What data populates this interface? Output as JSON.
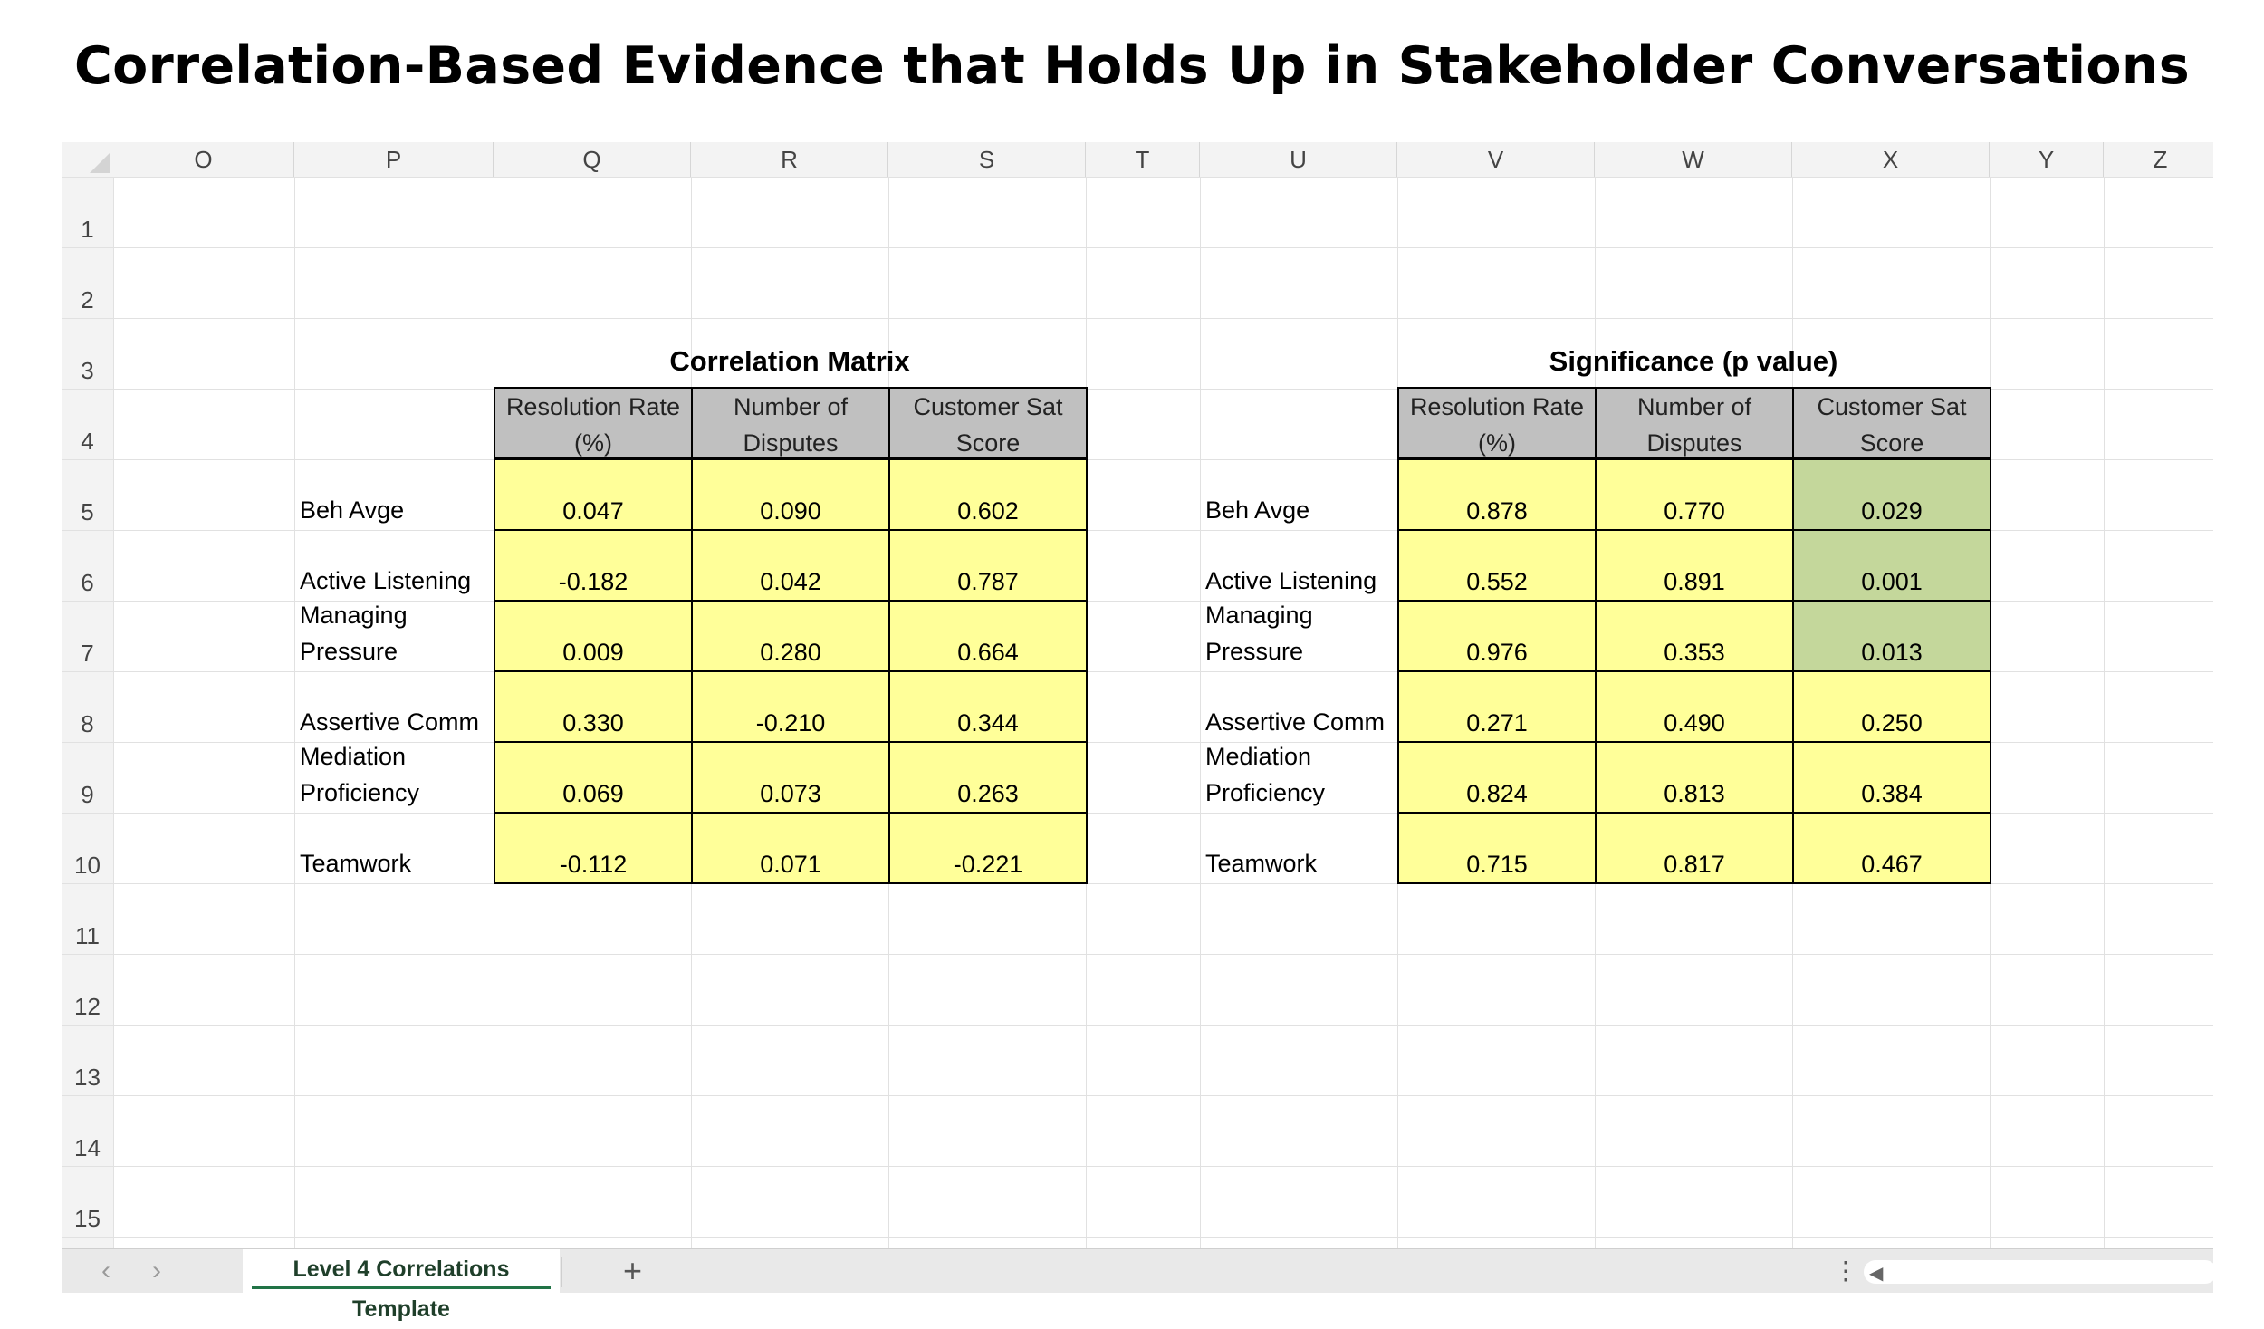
{
  "page_title": "Correlation-Based Evidence that Holds Up in Stakeholder Conversations",
  "columns": [
    "O",
    "P",
    "Q",
    "R",
    "S",
    "T",
    "U",
    "V",
    "W",
    "X",
    "Y",
    "Z"
  ],
  "rows": [
    "1",
    "2",
    "3",
    "4",
    "5",
    "6",
    "7",
    "8",
    "9",
    "10",
    "11",
    "12",
    "13",
    "14",
    "15"
  ],
  "correlation_table": {
    "title": "Correlation Matrix",
    "headers": [
      {
        "line1": "Resolution Rate",
        "line2": "(%)"
      },
      {
        "line1": "Number of",
        "line2": "Disputes"
      },
      {
        "line1": "Customer Sat",
        "line2": "Score"
      }
    ],
    "rows": [
      {
        "label1": "",
        "label2": "Beh Avge",
        "values": [
          "0.047",
          "0.090",
          "0.602"
        ]
      },
      {
        "label1": "",
        "label2": "Active Listening",
        "values": [
          "-0.182",
          "0.042",
          "0.787"
        ]
      },
      {
        "label1": "Managing",
        "label2": "Pressure",
        "values": [
          "0.009",
          "0.280",
          "0.664"
        ]
      },
      {
        "label1": "",
        "label2": "Assertive Comm",
        "values": [
          "0.330",
          "-0.210",
          "0.344"
        ]
      },
      {
        "label1": "Mediation",
        "label2": "Proficiency",
        "values": [
          "0.069",
          "0.073",
          "0.263"
        ]
      },
      {
        "label1": "",
        "label2": "Teamwork",
        "values": [
          "-0.112",
          "0.071",
          "-0.221"
        ]
      }
    ]
  },
  "significance_table": {
    "title": "Significance (p value)",
    "headers": [
      {
        "line1": "Resolution Rate",
        "line2": "(%)"
      },
      {
        "line1": "Number of",
        "line2": "Disputes"
      },
      {
        "line1": "Customer Sat",
        "line2": "Score"
      }
    ],
    "rows": [
      {
        "label1": "",
        "label2": "Beh Avge",
        "values": [
          "0.878",
          "0.770",
          "0.029"
        ],
        "highlight": [
          false,
          false,
          true
        ]
      },
      {
        "label1": "",
        "label2": "Active Listening",
        "values": [
          "0.552",
          "0.891",
          "0.001"
        ],
        "highlight": [
          false,
          false,
          true
        ]
      },
      {
        "label1": "Managing",
        "label2": "Pressure",
        "values": [
          "0.976",
          "0.353",
          "0.013"
        ],
        "highlight": [
          false,
          false,
          true
        ]
      },
      {
        "label1": "",
        "label2": "Assertive Comm",
        "values": [
          "0.271",
          "0.490",
          "0.250"
        ],
        "highlight": [
          false,
          false,
          false
        ]
      },
      {
        "label1": "Mediation",
        "label2": "Proficiency",
        "values": [
          "0.824",
          "0.813",
          "0.384"
        ],
        "highlight": [
          false,
          false,
          false
        ]
      },
      {
        "label1": "",
        "label2": "Teamwork",
        "values": [
          "0.715",
          "0.817",
          "0.467"
        ],
        "highlight": [
          false,
          false,
          false
        ]
      }
    ]
  },
  "colors": {
    "value_fill": "#ffff99",
    "significant_fill": "#c4d79b",
    "header_fill": "#c0c0c0",
    "tab_accent": "#217346"
  },
  "tabbar": {
    "prev_icon": "chevron-left-icon",
    "next_icon": "chevron-right-icon",
    "sheet_tab_label": "Level 4 Correlations Template",
    "add_sheet_label": "+",
    "more_label": "⋮"
  }
}
